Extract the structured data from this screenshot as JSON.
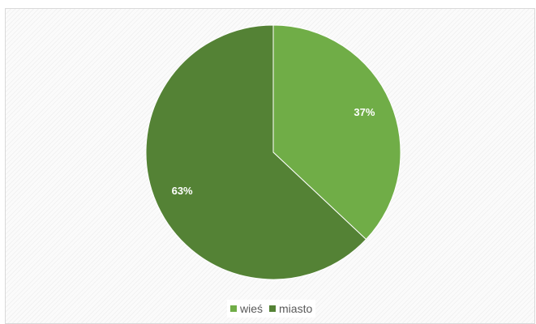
{
  "chart_data": {
    "type": "pie",
    "categories": [
      "wieś",
      "miasto"
    ],
    "values": [
      37,
      63
    ],
    "value_labels": [
      "37%",
      "63%"
    ],
    "colors": [
      "#70ad47",
      "#548235"
    ],
    "legend": {
      "placement": "bottom",
      "entries": [
        "wieś",
        "miasto"
      ]
    },
    "start_angle": "12 o'clock",
    "direction": "clockwise"
  }
}
